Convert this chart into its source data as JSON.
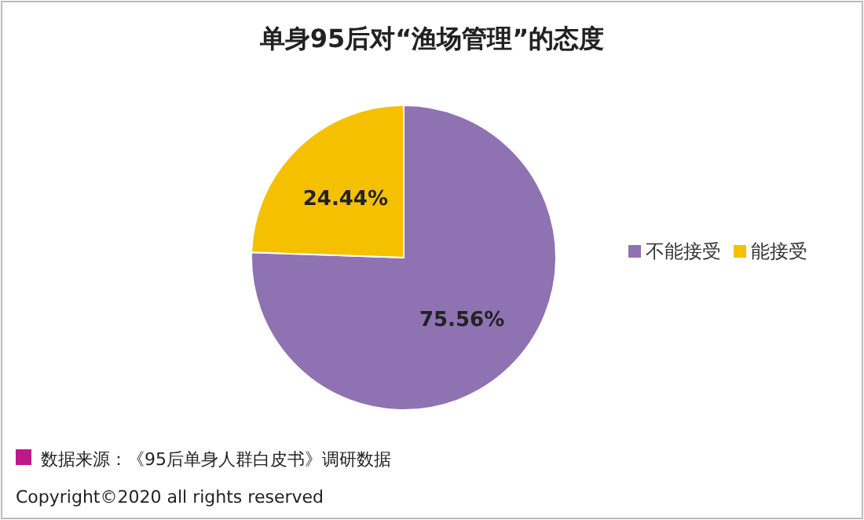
{
  "chart_data": {
    "type": "pie",
    "title": "单身95后对“渔场管理”的态度",
    "categories": [
      "不能接受",
      "能接受"
    ],
    "values": [
      75.56,
      24.44
    ],
    "colors": [
      "#8e72b2",
      "#f5c000"
    ],
    "value_labels": [
      "75.56%",
      "24.44%"
    ],
    "legend": "right",
    "annotations": [
      "数据来源：《95后单身人群白皮书》调研数据",
      "Copyright©2020 all rights reserved"
    ]
  }
}
